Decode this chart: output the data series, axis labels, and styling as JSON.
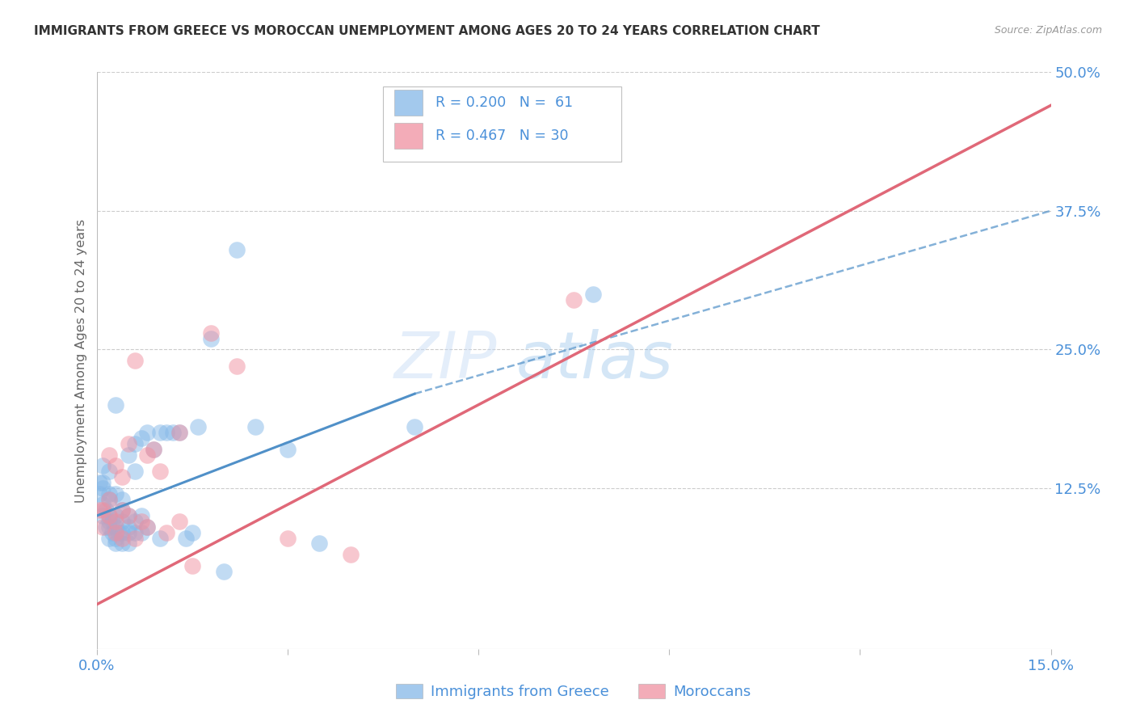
{
  "title": "IMMIGRANTS FROM GREECE VS MOROCCAN UNEMPLOYMENT AMONG AGES 20 TO 24 YEARS CORRELATION CHART",
  "source": "Source: ZipAtlas.com",
  "ylabel": "Unemployment Among Ages 20 to 24 years",
  "watermark_zip": "ZIP",
  "watermark_atlas": "atlas",
  "x_min": 0.0,
  "x_max": 0.15,
  "y_min": -0.02,
  "y_max": 0.5,
  "y_ticks_right": [
    0.125,
    0.25,
    0.375,
    0.5
  ],
  "y_tick_labels_right": [
    "12.5%",
    "25.0%",
    "37.5%",
    "50.0%"
  ],
  "legend_label1": "Immigrants from Greece",
  "legend_label2": "Moroccans",
  "blue_color": "#85b8e8",
  "pink_color": "#f090a0",
  "blue_line_color": "#5090c8",
  "pink_line_color": "#e06878",
  "axis_color": "#4a90d9",
  "title_color": "#333333",
  "greece_x": [
    0.0005,
    0.0005,
    0.001,
    0.001,
    0.001,
    0.001,
    0.001,
    0.0015,
    0.0015,
    0.002,
    0.002,
    0.002,
    0.002,
    0.002,
    0.002,
    0.002,
    0.0025,
    0.0025,
    0.003,
    0.003,
    0.003,
    0.003,
    0.003,
    0.003,
    0.0035,
    0.004,
    0.004,
    0.004,
    0.004,
    0.004,
    0.005,
    0.005,
    0.005,
    0.005,
    0.005,
    0.006,
    0.006,
    0.006,
    0.006,
    0.007,
    0.007,
    0.007,
    0.008,
    0.008,
    0.009,
    0.01,
    0.01,
    0.011,
    0.012,
    0.013,
    0.014,
    0.015,
    0.016,
    0.018,
    0.02,
    0.022,
    0.025,
    0.03,
    0.035,
    0.05,
    0.078
  ],
  "greece_y": [
    0.12,
    0.13,
    0.1,
    0.11,
    0.125,
    0.13,
    0.145,
    0.09,
    0.105,
    0.08,
    0.09,
    0.095,
    0.1,
    0.115,
    0.12,
    0.14,
    0.085,
    0.095,
    0.075,
    0.08,
    0.09,
    0.1,
    0.12,
    0.2,
    0.085,
    0.075,
    0.085,
    0.095,
    0.105,
    0.115,
    0.075,
    0.085,
    0.09,
    0.1,
    0.155,
    0.085,
    0.095,
    0.14,
    0.165,
    0.085,
    0.1,
    0.17,
    0.09,
    0.175,
    0.16,
    0.08,
    0.175,
    0.175,
    0.175,
    0.175,
    0.08,
    0.085,
    0.18,
    0.26,
    0.05,
    0.34,
    0.18,
    0.16,
    0.075,
    0.18,
    0.3
  ],
  "morocco_x": [
    0.0005,
    0.001,
    0.001,
    0.002,
    0.002,
    0.002,
    0.003,
    0.003,
    0.003,
    0.004,
    0.004,
    0.004,
    0.005,
    0.005,
    0.006,
    0.006,
    0.007,
    0.008,
    0.008,
    0.009,
    0.01,
    0.011,
    0.013,
    0.013,
    0.015,
    0.018,
    0.022,
    0.03,
    0.04,
    0.075
  ],
  "morocco_y": [
    0.105,
    0.09,
    0.105,
    0.1,
    0.115,
    0.155,
    0.085,
    0.095,
    0.145,
    0.08,
    0.105,
    0.135,
    0.1,
    0.165,
    0.08,
    0.24,
    0.095,
    0.09,
    0.155,
    0.16,
    0.14,
    0.085,
    0.095,
    0.175,
    0.055,
    0.265,
    0.235,
    0.08,
    0.065,
    0.295
  ],
  "greece_trend_x": [
    0.0,
    0.05
  ],
  "greece_trend_y": [
    0.1,
    0.21
  ],
  "morocco_trend_x": [
    0.0,
    0.15
  ],
  "morocco_trend_y": [
    0.02,
    0.47
  ],
  "greece_dashed_trend_x": [
    0.05,
    0.15
  ],
  "greece_dashed_trend_y": [
    0.21,
    0.375
  ],
  "grid_color": "#cccccc",
  "bg_color": "#ffffff"
}
